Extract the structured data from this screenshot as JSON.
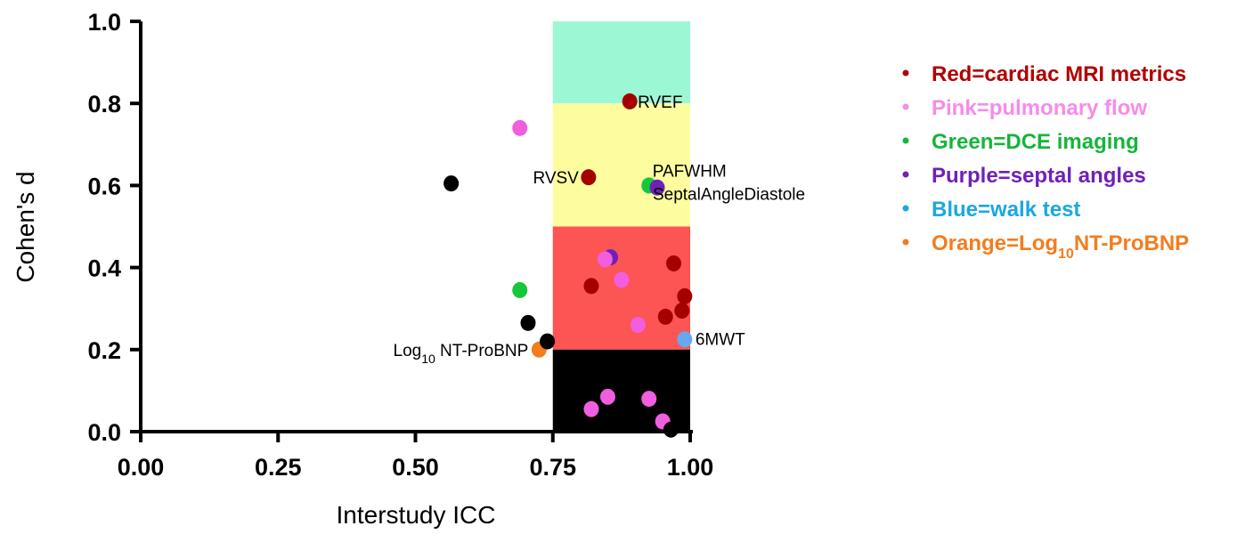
{
  "chart_data": {
    "type": "scatter",
    "xlabel": "Interstudy ICC",
    "ylabel": "Cohen's d",
    "xlim": [
      0,
      1
    ],
    "ylim": [
      0,
      1
    ],
    "xticks": [
      "0.00",
      "0.25",
      "0.50",
      "0.75",
      "1.00"
    ],
    "yticks": [
      "0.0",
      "0.2",
      "0.4",
      "0.6",
      "0.8",
      "1.0"
    ],
    "grid": false,
    "bands": [
      {
        "x0": 0.75,
        "x1": 1.0,
        "y0": 0.8,
        "y1": 1.0,
        "color": "#9cf8d4"
      },
      {
        "x0": 0.75,
        "x1": 1.0,
        "y0": 0.5,
        "y1": 0.8,
        "color": "#fdfda0"
      },
      {
        "x0": 0.75,
        "x1": 1.0,
        "y0": 0.2,
        "y1": 0.5,
        "color": "#fd5454"
      },
      {
        "x0": 0.75,
        "x1": 1.0,
        "y0": 0.0,
        "y1": 0.2,
        "color": "#000000"
      }
    ],
    "colors": {
      "red": "#a40000",
      "pink": "#f25ee0",
      "green": "#15c83a",
      "purple": "#7020b8",
      "blue": "#68a8f0",
      "orange": "#f37d1d",
      "black": "#000000"
    },
    "points": [
      {
        "x": 0.89,
        "y": 0.805,
        "group": "red",
        "label": "RVEF"
      },
      {
        "x": 0.815,
        "y": 0.62,
        "group": "red",
        "label": "RVSV"
      },
      {
        "x": 0.925,
        "y": 0.6,
        "group": "green",
        "label": "PAFWHM"
      },
      {
        "x": 0.94,
        "y": 0.595,
        "group": "purple",
        "label": "SeptalAngleDiastole"
      },
      {
        "x": 0.99,
        "y": 0.225,
        "group": "blue",
        "label": "6MWT"
      },
      {
        "x": 0.725,
        "y": 0.2,
        "group": "orange",
        "label": "Log10 NT-ProBNP"
      },
      {
        "x": 0.69,
        "y": 0.74,
        "group": "pink",
        "label": ""
      },
      {
        "x": 0.565,
        "y": 0.605,
        "group": "black",
        "label": ""
      },
      {
        "x": 0.69,
        "y": 0.345,
        "group": "green",
        "label": ""
      },
      {
        "x": 0.705,
        "y": 0.265,
        "group": "black",
        "label": ""
      },
      {
        "x": 0.74,
        "y": 0.22,
        "group": "black",
        "label": ""
      },
      {
        "x": 0.855,
        "y": 0.425,
        "group": "purple",
        "label": ""
      },
      {
        "x": 0.845,
        "y": 0.42,
        "group": "pink",
        "label": ""
      },
      {
        "x": 0.82,
        "y": 0.355,
        "group": "red",
        "label": ""
      },
      {
        "x": 0.875,
        "y": 0.37,
        "group": "pink",
        "label": ""
      },
      {
        "x": 0.97,
        "y": 0.41,
        "group": "red",
        "label": ""
      },
      {
        "x": 0.99,
        "y": 0.33,
        "group": "red",
        "label": ""
      },
      {
        "x": 0.985,
        "y": 0.295,
        "group": "red",
        "label": ""
      },
      {
        "x": 0.955,
        "y": 0.28,
        "group": "red",
        "label": ""
      },
      {
        "x": 0.905,
        "y": 0.26,
        "group": "pink",
        "label": ""
      },
      {
        "x": 0.82,
        "y": 0.055,
        "group": "pink",
        "label": ""
      },
      {
        "x": 0.85,
        "y": 0.085,
        "group": "pink",
        "label": ""
      },
      {
        "x": 0.925,
        "y": 0.08,
        "group": "pink",
        "label": ""
      },
      {
        "x": 0.95,
        "y": 0.025,
        "group": "pink",
        "label": ""
      },
      {
        "x": 0.965,
        "y": 0.005,
        "group": "black",
        "label": ""
      }
    ],
    "legend": {
      "position": "top-right",
      "entries": [
        {
          "text": "Red=cardiac MRI metrics",
          "color": "#b30000"
        },
        {
          "text": "Pink=pulmonary flow",
          "color": "#f78be8"
        },
        {
          "text": "Green=DCE imaging",
          "color": "#15b53a"
        },
        {
          "text": "Purple=septal angles",
          "color": "#7020b8"
        },
        {
          "text": "Blue=walk test",
          "color": "#1aa8e0"
        },
        {
          "text": "Orange=Log10NT-ProBNP",
          "color": "#f37d1d"
        }
      ]
    }
  }
}
